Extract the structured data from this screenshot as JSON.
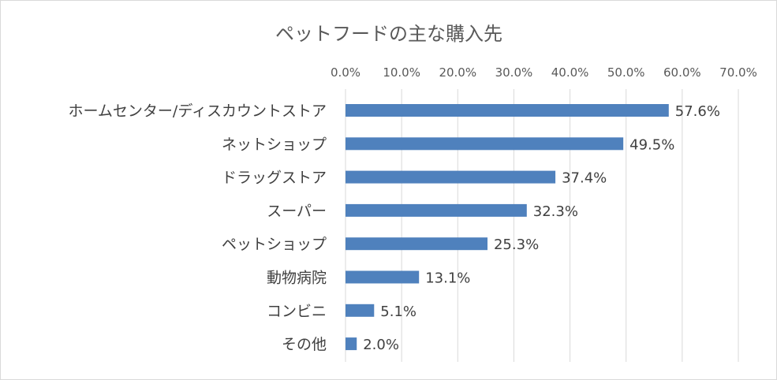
{
  "chart_data": {
    "type": "bar",
    "orientation": "horizontal",
    "title": "ペットフードの主な購入先",
    "categories": [
      "ホームセンター/ディスカウントストア",
      "ネットショップ",
      "ドラッグストア",
      "スーパー",
      "ペットショップ",
      "動物病院",
      "コンビニ",
      "その他"
    ],
    "values": [
      57.6,
      49.5,
      37.4,
      32.3,
      25.3,
      13.1,
      5.1,
      2.0
    ],
    "data_labels": [
      "57.6%",
      "49.5%",
      "37.4%",
      "32.3%",
      "25.3%",
      "13.1%",
      "5.1%",
      "2.0%"
    ],
    "xlim": [
      0,
      70
    ],
    "x_ticks": [
      0,
      10,
      20,
      30,
      40,
      50,
      60,
      70
    ],
    "x_tick_labels": [
      "0.0%",
      "10.0%",
      "20.0%",
      "30.0%",
      "40.0%",
      "50.0%",
      "60.0%",
      "70.0%"
    ],
    "x_axis_position": "top",
    "grid": true,
    "legend": "none",
    "bar_color": "#4f81bd",
    "grid_color": "#d9d9d9"
  }
}
